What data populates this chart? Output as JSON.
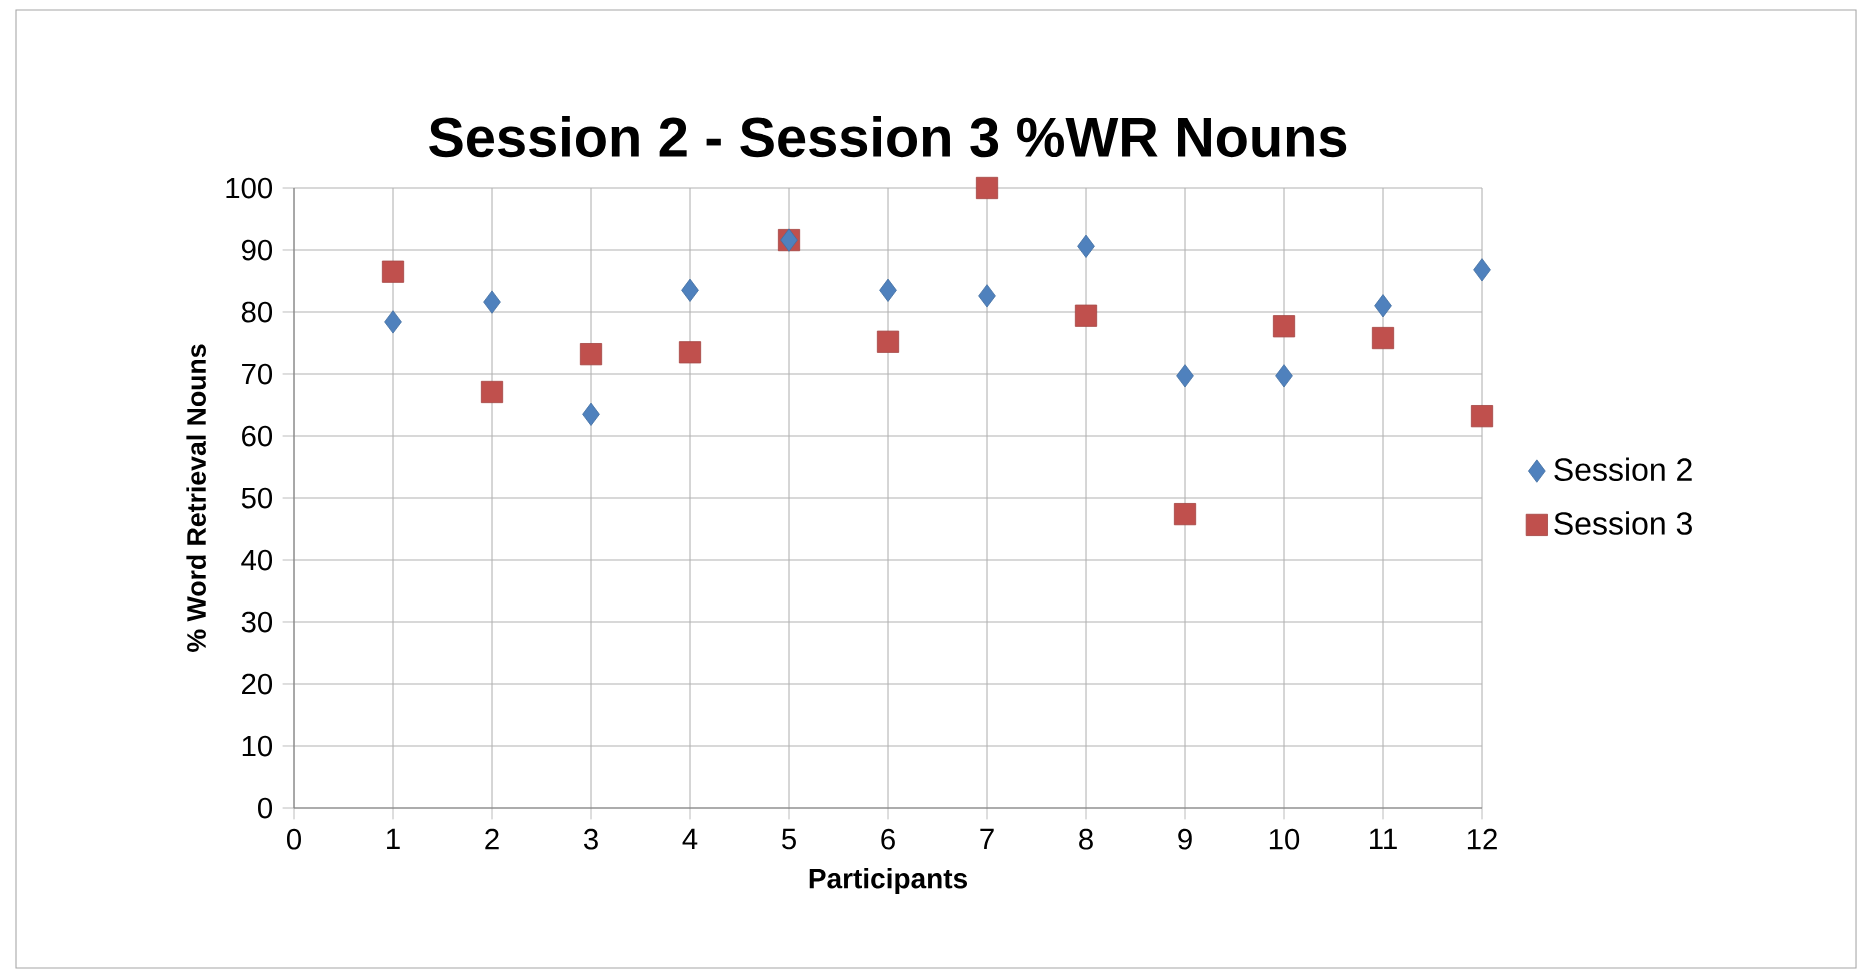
{
  "chart_data": {
    "type": "scatter",
    "title": "Session 2 - Session 3 %WR Nouns",
    "xlabel": "Participants",
    "ylabel": "% Word Retrieval Nouns",
    "x": [
      1,
      2,
      3,
      4,
      5,
      6,
      7,
      8,
      9,
      10,
      11,
      12
    ],
    "series": [
      {
        "name": "Session 2",
        "color": "#4f81bd",
        "marker": "diamond",
        "values": [
          78.4,
          81.6,
          63.5,
          83.5,
          91.6,
          83.5,
          82.6,
          90.6,
          69.7,
          69.7,
          81,
          86.8
        ]
      },
      {
        "name": "Session 3",
        "color": "#c0504d",
        "marker": "square",
        "values": [
          86.5,
          67.1,
          73.2,
          73.5,
          91.6,
          75.2,
          100,
          79.4,
          47.4,
          77.7,
          75.8,
          63.2
        ]
      }
    ],
    "xlim": [
      0,
      12
    ],
    "xticks": [
      0,
      1,
      2,
      3,
      4,
      5,
      6,
      7,
      8,
      9,
      10,
      11,
      12
    ],
    "ylim": [
      0,
      100
    ],
    "yticks": [
      0,
      10,
      20,
      30,
      40,
      50,
      60,
      70,
      80,
      90,
      100
    ],
    "grid": true,
    "legend": "right"
  }
}
